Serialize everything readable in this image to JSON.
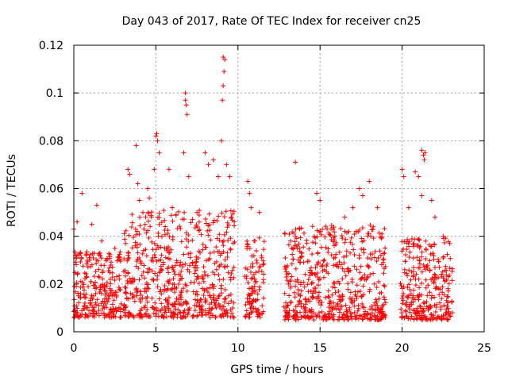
{
  "chart_data": {
    "type": "scatter",
    "title": "Day 043 of 2017, Rate Of TEC Index for receiver cn25",
    "xlabel": "GPS time / hours",
    "ylabel": "ROTI / TECUs",
    "xlim": [
      0,
      25
    ],
    "ylim": [
      0,
      0.12
    ],
    "xticks": [
      "0",
      "5",
      "10",
      "15",
      "20",
      "25"
    ],
    "yticks": [
      "0",
      "0.02",
      "0.04",
      "0.06",
      "0.08",
      "0.1",
      "0.12"
    ],
    "grid": true,
    "marker": "+",
    "color": "#ff0000",
    "series": [
      {
        "name": "ROTI",
        "segments": [
          {
            "x_start": 0.0,
            "x_end": 2.9,
            "typical_low": 0.006,
            "typical_high": 0.03
          },
          {
            "x_start": 3.0,
            "x_end": 9.8,
            "typical_low": 0.006,
            "typical_high": 0.045
          },
          {
            "x_start": 10.4,
            "x_end": 11.6,
            "typical_low": 0.006,
            "typical_high": 0.035
          },
          {
            "x_start": 12.8,
            "x_end": 19.0,
            "typical_low": 0.005,
            "typical_high": 0.04
          },
          {
            "x_start": 19.9,
            "x_end": 23.1,
            "typical_low": 0.005,
            "typical_high": 0.035
          }
        ],
        "points": [
          [
            0.0,
            0.043
          ],
          [
            0.2,
            0.046
          ],
          [
            0.5,
            0.058
          ],
          [
            1.1,
            0.045
          ],
          [
            1.4,
            0.053
          ],
          [
            1.7,
            0.038
          ],
          [
            2.5,
            0.035
          ],
          [
            3.3,
            0.068
          ],
          [
            3.4,
            0.066
          ],
          [
            3.8,
            0.078
          ],
          [
            3.9,
            0.062
          ],
          [
            4.0,
            0.055
          ],
          [
            4.5,
            0.06
          ],
          [
            4.6,
            0.056
          ],
          [
            4.9,
            0.068
          ],
          [
            5.0,
            0.082
          ],
          [
            5.05,
            0.083
          ],
          [
            5.1,
            0.08
          ],
          [
            5.2,
            0.075
          ],
          [
            5.8,
            0.068
          ],
          [
            6.0,
            0.052
          ],
          [
            6.8,
            0.1
          ],
          [
            6.8,
            0.097
          ],
          [
            6.85,
            0.095
          ],
          [
            6.9,
            0.091
          ],
          [
            6.7,
            0.075
          ],
          [
            7.0,
            0.065
          ],
          [
            7.5,
            0.05
          ],
          [
            8.0,
            0.075
          ],
          [
            8.2,
            0.07
          ],
          [
            8.5,
            0.072
          ],
          [
            8.8,
            0.065
          ],
          [
            9.0,
            0.08
          ],
          [
            9.05,
            0.097
          ],
          [
            9.1,
            0.103
          ],
          [
            9.15,
            0.109
          ],
          [
            9.1,
            0.115
          ],
          [
            9.2,
            0.114
          ],
          [
            9.3,
            0.07
          ],
          [
            9.5,
            0.065
          ],
          [
            9.6,
            0.048
          ],
          [
            10.6,
            0.063
          ],
          [
            10.7,
            0.058
          ],
          [
            10.8,
            0.052
          ],
          [
            11.3,
            0.05
          ],
          [
            13.5,
            0.071
          ],
          [
            13.2,
            0.038
          ],
          [
            14.8,
            0.058
          ],
          [
            15.0,
            0.055
          ],
          [
            16.5,
            0.048
          ],
          [
            17.0,
            0.052
          ],
          [
            17.4,
            0.06
          ],
          [
            17.6,
            0.057
          ],
          [
            18.0,
            0.063
          ],
          [
            18.5,
            0.052
          ],
          [
            20.0,
            0.068
          ],
          [
            20.1,
            0.065
          ],
          [
            20.4,
            0.052
          ],
          [
            20.8,
            0.067
          ],
          [
            21.0,
            0.065
          ],
          [
            21.2,
            0.076
          ],
          [
            21.3,
            0.074
          ],
          [
            21.35,
            0.072
          ],
          [
            21.4,
            0.075
          ],
          [
            21.2,
            0.057
          ],
          [
            21.8,
            0.055
          ],
          [
            22.0,
            0.048
          ],
          [
            22.5,
            0.04
          ],
          [
            22.9,
            0.037
          ]
        ]
      }
    ]
  }
}
